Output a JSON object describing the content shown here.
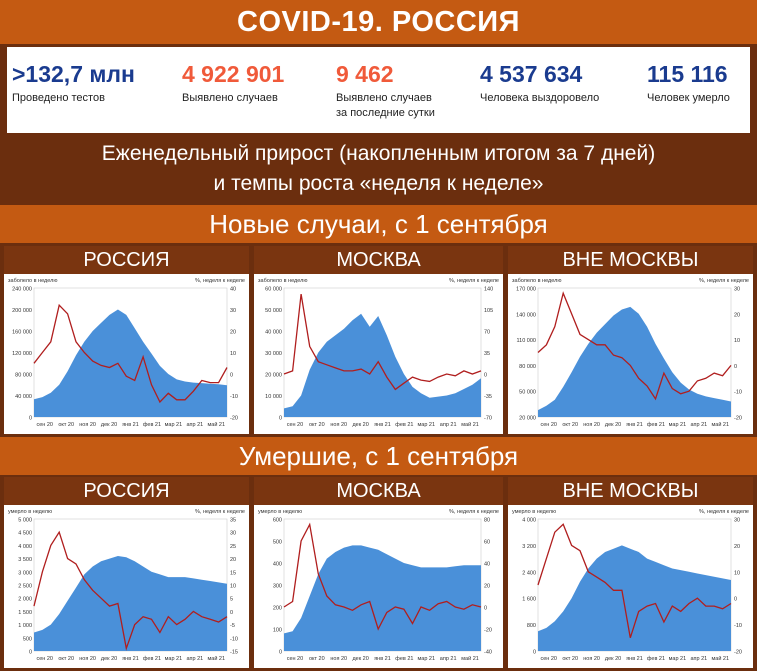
{
  "header": {
    "title": "COVID-19. РОССИЯ"
  },
  "stats": [
    {
      "value": ">132,7 млн",
      "label": "Проведено тестов",
      "label2": "",
      "color": "#1a3b8f"
    },
    {
      "value": "4 922 901",
      "label": "Выявлено случаев",
      "label2": "",
      "color": "#f05a3a"
    },
    {
      "value": "9 462",
      "label": "Выявлено случаев",
      "label2": "за последние сутки",
      "color": "#f05a3a"
    },
    {
      "value": "4 537 634",
      "label": "Человека выздоровело",
      "label2": "",
      "color": "#1a3b8f"
    },
    {
      "value": "115 116",
      "label": "Человек умерло",
      "label2": "",
      "color": "#1a3b8f"
    }
  ],
  "subtitle": {
    "line1": "Еженедельный прирост (накопленным итогом за 7 дней)",
    "line2": "и темпы роста «неделя к неделе»"
  },
  "sections": {
    "cases": "Новые случаи, с 1 сентября",
    "deaths": "Умершие, с 1 сентября"
  },
  "colors": {
    "area": "#4a90d9",
    "line": "#b01e1e",
    "band_orange": "#c45a12",
    "band_dark": "#6b2e0e"
  },
  "chart_data": [
    {
      "type": "area",
      "panel_title": "РОССИЯ",
      "left_axis_label": "заболело в неделю",
      "right_axis_label": "%, неделя к неделе",
      "x_ticks": [
        "сен 20",
        "окт 20",
        "ноя 20",
        "дек 20",
        "янв 21",
        "фев 21",
        "мар 21",
        "апр 21",
        "май 21"
      ],
      "ylim": [
        0,
        240000
      ],
      "y_ticks": [
        "0",
        "40 000",
        "80 000",
        "120 000",
        "160 000",
        "200 000",
        "240 000"
      ],
      "y2lim": [
        -20,
        40
      ],
      "y2_ticks": [
        "-20",
        "-10",
        "0",
        "10",
        "20",
        "30",
        "40"
      ],
      "series": [
        {
          "axis": "left",
          "values": [
            33000,
            37000,
            45000,
            60000,
            85000,
            115000,
            140000,
            160000,
            175000,
            190000,
            200000,
            190000,
            165000,
            140000,
            118000,
            95000,
            80000,
            70000,
            66000,
            64000,
            63000,
            62000,
            61000,
            59000
          ]
        },
        {
          "axis": "right",
          "values": [
            5,
            10,
            15,
            32,
            28,
            15,
            10,
            6,
            4,
            3,
            5,
            -1,
            -3,
            8,
            -5,
            -13,
            -9,
            -12,
            -12,
            -8,
            -3,
            -4,
            -4,
            3
          ]
        }
      ]
    },
    {
      "type": "area",
      "panel_title": "МОСКВА",
      "left_axis_label": "заболело в неделю",
      "right_axis_label": "%, неделя к неделе",
      "x_ticks": [
        "сен 20",
        "окт 20",
        "ноя 20",
        "дек 20",
        "янв 21",
        "фев 21",
        "мар 21",
        "апр 21",
        "май 21"
      ],
      "ylim": [
        0,
        60000
      ],
      "y_ticks": [
        "0",
        "10 000",
        "20 000",
        "30 000",
        "40 000",
        "50 000",
        "60 000"
      ],
      "y2lim": [
        -70,
        140
      ],
      "y2_ticks": [
        "-70",
        "-35",
        "0",
        "35",
        "70",
        "105",
        "140"
      ],
      "series": [
        {
          "axis": "left",
          "values": [
            4000,
            5000,
            10000,
            22000,
            30000,
            35000,
            38000,
            41000,
            45000,
            48000,
            42000,
            47000,
            38000,
            28000,
            20000,
            14000,
            11000,
            9000,
            9500,
            10000,
            11000,
            13000,
            15000,
            18000
          ]
        },
        {
          "axis": "right",
          "values": [
            0,
            5,
            130,
            45,
            20,
            15,
            10,
            5,
            5,
            8,
            0,
            20,
            -5,
            -25,
            -15,
            -5,
            -10,
            -12,
            -5,
            0,
            -3,
            5,
            0,
            5
          ]
        }
      ]
    },
    {
      "type": "area",
      "panel_title": "ВНЕ МОСКВЫ",
      "left_axis_label": "заболело в неделю",
      "right_axis_label": "%, неделя к неделе",
      "x_ticks": [
        "сен 20",
        "окт 20",
        "ноя 20",
        "дек 20",
        "янв 21",
        "фев 21",
        "мар 21",
        "апр 21",
        "май 21"
      ],
      "ylim": [
        20000,
        170000
      ],
      "y_ticks": [
        "20 000",
        "50 000",
        "80 000",
        "110 000",
        "140 000",
        "170 000"
      ],
      "y2lim": [
        -20,
        30
      ],
      "y2_ticks": [
        "-20",
        "-10",
        "0",
        "10",
        "20",
        "30"
      ],
      "series": [
        {
          "axis": "left",
          "values": [
            28000,
            33000,
            40000,
            55000,
            72000,
            90000,
            105000,
            118000,
            128000,
            138000,
            145000,
            148000,
            140000,
            125000,
            105000,
            88000,
            72000,
            60000,
            52000,
            47000,
            44000,
            42000,
            40000,
            38000
          ]
        },
        {
          "axis": "right",
          "values": [
            5,
            8,
            15,
            28,
            20,
            12,
            10,
            8,
            8,
            4,
            3,
            0,
            -5,
            -8,
            -13,
            -3,
            -9,
            -11,
            -10,
            -6,
            -5,
            -3,
            -4,
            0
          ]
        }
      ]
    },
    {
      "type": "area",
      "panel_title": "РОССИЯ",
      "left_axis_label": "умерло в неделю",
      "right_axis_label": "%, неделя к неделе",
      "x_ticks": [
        "сен 20",
        "окт 20",
        "ноя 20",
        "дек 20",
        "янв 21",
        "фев 21",
        "мар 21",
        "апр 21",
        "май 21"
      ],
      "ylim": [
        0,
        5000
      ],
      "y_ticks": [
        "0",
        "250",
        "500",
        "750",
        "1 000",
        "1 250",
        "1 500",
        "1 750",
        "2 000",
        "2 250",
        "2 500",
        "2 750",
        "3 000",
        "3 250",
        "3 500",
        "3 750",
        "4 000",
        "4 250",
        "4 500",
        "4 750",
        "5 000"
      ],
      "y2lim": [
        -15,
        35
      ],
      "y2_ticks": [
        "-15",
        "-10",
        "-5",
        "0",
        "5",
        "10",
        "15",
        "20",
        "25",
        "30",
        "35"
      ],
      "series": [
        {
          "axis": "left",
          "values": [
            700,
            800,
            1000,
            1400,
            1900,
            2400,
            2900,
            3200,
            3400,
            3500,
            3600,
            3550,
            3400,
            3200,
            3000,
            2900,
            2800,
            2800,
            2800,
            2750,
            2700,
            2650,
            2600,
            2550
          ]
        },
        {
          "axis": "right",
          "values": [
            2,
            15,
            25,
            30,
            20,
            18,
            12,
            8,
            5,
            2,
            3,
            -14,
            -5,
            -2,
            -3,
            -8,
            -2,
            -5,
            -3,
            0,
            -2,
            -3,
            -4,
            -2
          ]
        }
      ]
    },
    {
      "type": "area",
      "panel_title": "МОСКВА",
      "left_axis_label": "умерло в неделю",
      "right_axis_label": "%, неделя к неделе",
      "x_ticks": [
        "сен 20",
        "окт 20",
        "ноя 20",
        "дек 20",
        "янв 21",
        "фев 21",
        "мар 21",
        "апр 21",
        "май 21"
      ],
      "ylim": [
        0,
        600
      ],
      "y_ticks": [
        "0",
        "100",
        "200",
        "300",
        "400",
        "500",
        "600"
      ],
      "y2lim": [
        -40,
        80
      ],
      "y2_ticks": [
        "-40",
        "-20",
        "0",
        "20",
        "40",
        "60",
        "80"
      ],
      "series": [
        {
          "axis": "left",
          "values": [
            80,
            90,
            150,
            250,
            350,
            420,
            450,
            470,
            480,
            480,
            470,
            460,
            440,
            420,
            400,
            390,
            380,
            380,
            380,
            380,
            385,
            390,
            390,
            390
          ]
        },
        {
          "axis": "right",
          "values": [
            0,
            5,
            60,
            75,
            30,
            10,
            2,
            0,
            -3,
            2,
            5,
            -20,
            -5,
            0,
            -2,
            -15,
            0,
            -3,
            3,
            5,
            0,
            -2,
            2,
            0
          ]
        }
      ]
    },
    {
      "type": "area",
      "panel_title": "ВНЕ МОСКВЫ",
      "left_axis_label": "умерло в неделю",
      "right_axis_label": "%, неделя к неделе",
      "x_ticks": [
        "сен 20",
        "окт 20",
        "ноя 20",
        "дек 20",
        "янв 21",
        "фев 21",
        "мар 21",
        "апр 21",
        "май 21"
      ],
      "ylim": [
        0,
        4000
      ],
      "y_ticks": [
        "0",
        "800",
        "1 600",
        "2 400",
        "3 200",
        "4 000"
      ],
      "y2lim": [
        -20,
        30
      ],
      "y2_ticks": [
        "-20",
        "-10",
        "0",
        "10",
        "20",
        "30"
      ],
      "series": [
        {
          "axis": "left",
          "values": [
            600,
            700,
            900,
            1200,
            1600,
            2100,
            2500,
            2800,
            3000,
            3100,
            3200,
            3100,
            3000,
            2800,
            2700,
            2600,
            2500,
            2450,
            2400,
            2350,
            2300,
            2250,
            2200,
            2150
          ]
        },
        {
          "axis": "right",
          "values": [
            5,
            15,
            25,
            28,
            20,
            18,
            10,
            8,
            6,
            3,
            3,
            -15,
            -5,
            -3,
            -2,
            -9,
            -3,
            -5,
            -2,
            0,
            -3,
            -3,
            -4,
            -2
          ]
        }
      ]
    }
  ]
}
